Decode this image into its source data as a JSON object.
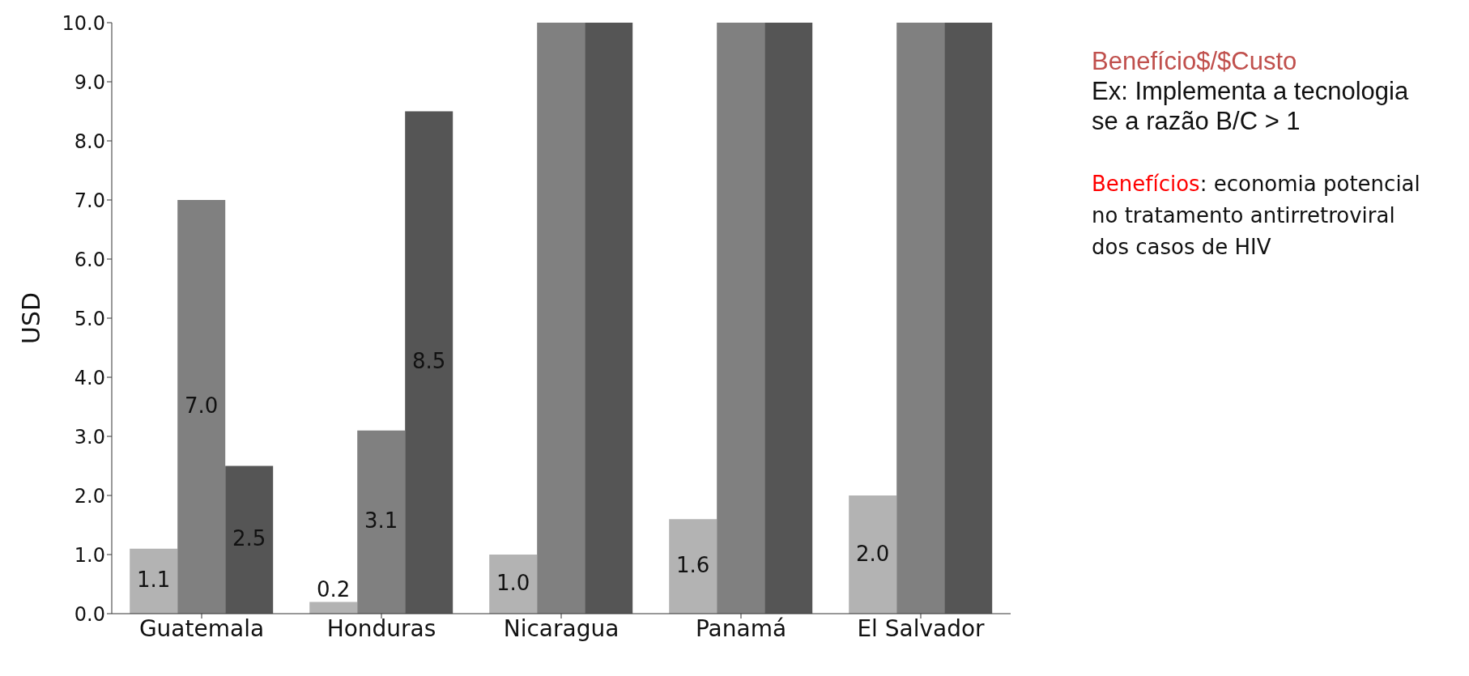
{
  "chart_data": {
    "type": "bar",
    "ylabel": "USD",
    "categories": [
      "Guatemala",
      "Honduras",
      "Nicaragua",
      "Panamá",
      "El Salvador"
    ],
    "series": [
      {
        "color": "#b3b3b3",
        "values": [
          1.1,
          0.2,
          1.0,
          1.6,
          2.0
        ],
        "value_labels": [
          "1.1",
          "0.2",
          "1.0",
          "1.6",
          "2.0"
        ]
      },
      {
        "color": "#808080",
        "values": [
          7.0,
          3.1,
          10.0,
          10.0,
          10.0
        ],
        "value_labels": [
          "7.0",
          "3.1",
          null,
          null,
          null
        ]
      },
      {
        "color": "#555555",
        "values": [
          2.5,
          8.5,
          10.0,
          10.0,
          10.0
        ],
        "value_labels": [
          "2.5",
          "8.5",
          null,
          null,
          null
        ]
      }
    ],
    "ylim": [
      0,
      10
    ],
    "yticks": [
      {
        "value": 0,
        "label": "0.0"
      },
      {
        "value": 1,
        "label": "1.0"
      },
      {
        "value": 2,
        "label": "2.0"
      },
      {
        "value": 3,
        "label": "3.0"
      },
      {
        "value": 4,
        "label": "4.0"
      },
      {
        "value": 5,
        "label": "5.0"
      },
      {
        "value": 6,
        "label": "6.0"
      },
      {
        "value": 7,
        "label": "7.0"
      },
      {
        "value": 8,
        "label": "8.0"
      },
      {
        "value": 9,
        "label": "9.0"
      },
      {
        "value": 10,
        "label": "10.0"
      }
    ],
    "grid": false,
    "legend": false,
    "annotations": [
      "Benefício$/$Custo",
      "Ex: Implementa a tecnologia se a razão B/C > 1",
      "Benefícios: economia potencial no tratamento antirretroviral dos casos de HIV"
    ]
  }
}
